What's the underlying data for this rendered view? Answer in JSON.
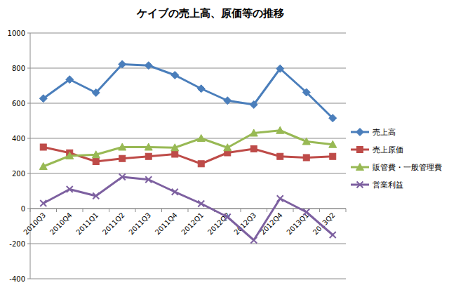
{
  "chart_data": {
    "type": "line",
    "title": "ケイブの売上高、原価等の推移",
    "categories": [
      "2010Q3",
      "2010Q4",
      "2011Q1",
      "2011Q2",
      "2011Q3",
      "2011Q4",
      "2012Q1",
      "2012Q2",
      "2012Q3",
      "2012Q4",
      "2013Q1",
      "2013Q2"
    ],
    "series": [
      {
        "name": "売上高",
        "color": "#4a7ebb",
        "marker": "diamond",
        "values": [
          627,
          735,
          660,
          822,
          815,
          760,
          683,
          615,
          592,
          797,
          662,
          515
        ]
      },
      {
        "name": "売上原価",
        "color": "#be4b48",
        "marker": "square",
        "values": [
          350,
          317,
          268,
          285,
          297,
          310,
          255,
          318,
          340,
          297,
          290,
          297
        ]
      },
      {
        "name": "販管費・一般管理費",
        "color": "#98b954",
        "marker": "triangle",
        "values": [
          240,
          300,
          307,
          350,
          350,
          347,
          400,
          347,
          430,
          445,
          382,
          365
        ]
      },
      {
        "name": "営業利益",
        "color": "#7d60a0",
        "marker": "x",
        "values": [
          30,
          110,
          72,
          180,
          165,
          95,
          28,
          -48,
          -180,
          57,
          -20,
          -150
        ]
      }
    ],
    "ylim": [
      -400,
      1000
    ],
    "yticks": [
      -400,
      -200,
      0,
      200,
      400,
      600,
      800,
      1000
    ],
    "grid": true,
    "legend": "right"
  }
}
